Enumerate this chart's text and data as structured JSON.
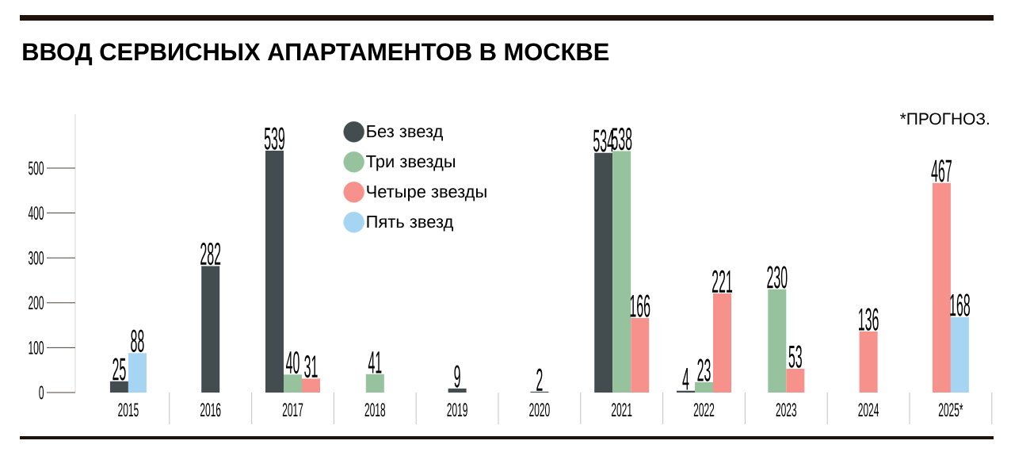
{
  "chart_data": {
    "type": "bar",
    "title": "ВВОД СЕРВИСНЫХ АПАРТАМЕНТОВ В МОСКВЕ",
    "categories": [
      "2015",
      "2016",
      "2017",
      "2018",
      "2019",
      "2020",
      "2021",
      "2022",
      "2023",
      "2024",
      "2025*"
    ],
    "series": [
      {
        "name": "Без звезд",
        "color": "#434d4f",
        "values": [
          25,
          282,
          539,
          null,
          9,
          2,
          534,
          4,
          null,
          null,
          null
        ]
      },
      {
        "name": "Три звезды",
        "color": "#96c39d",
        "values": [
          null,
          null,
          40,
          41,
          null,
          null,
          538,
          23,
          230,
          null,
          null
        ]
      },
      {
        "name": "Четыре звезды",
        "color": "#f7918c",
        "values": [
          null,
          null,
          31,
          null,
          null,
          null,
          166,
          221,
          53,
          136,
          467
        ]
      },
      {
        "name": "Пять звезд",
        "color": "#a6d4f3",
        "values": [
          88,
          null,
          null,
          null,
          null,
          null,
          null,
          null,
          null,
          null,
          168
        ]
      }
    ],
    "ylim": [
      0,
      620
    ],
    "yticks": [
      0,
      100,
      200,
      300,
      400,
      500
    ],
    "data_labels": true,
    "legend": "top",
    "grid": false,
    "annotations": [
      "*ПРОГНОЗ."
    ]
  }
}
